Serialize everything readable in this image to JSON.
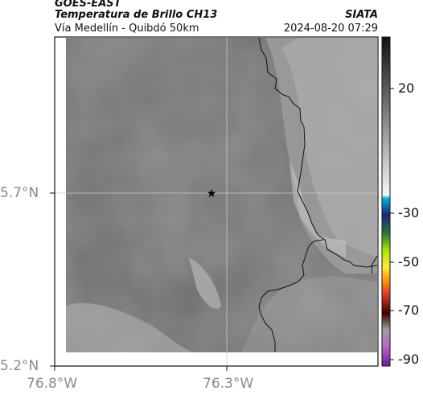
{
  "header": {
    "satellite": "GOES-EAST",
    "product": "Temperatura de Brillo CH13",
    "route": "Vía Medellín - Quibdó 50km",
    "agency": "SIATA",
    "timestamp": "2024-08-20 07:29"
  },
  "map": {
    "lat_labels": [
      "5.7°N",
      "5.2°N"
    ],
    "lon_labels": [
      "76.8°W",
      "76.3°W"
    ],
    "marker": "star-marker",
    "background": "grayscale brightness temperature imagery",
    "border_color": "#111111"
  },
  "colorbar": {
    "ticks": [
      "20",
      "-30",
      "-50",
      "-70",
      "-90"
    ],
    "colors": [
      "#111111",
      "#ffffff",
      "#00bcd4",
      "#1a237e",
      "#2e7d32",
      "#aeea00",
      "#ffeb3b",
      "#ff9800",
      "#e53935",
      "#3e0000",
      "#9e9e9e",
      "#ba68c8"
    ]
  }
}
